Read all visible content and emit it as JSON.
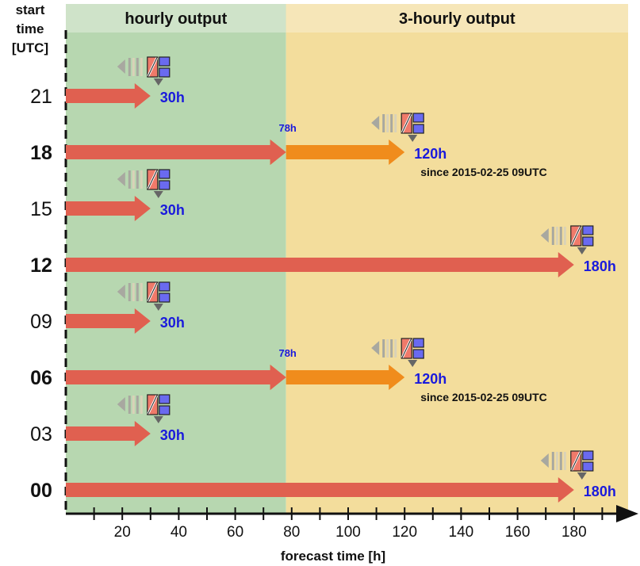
{
  "regions": [
    {
      "label": "hourly output",
      "from": 0,
      "to": 78,
      "color": "#b7d7b0",
      "header_color": "#cfe3c9"
    },
    {
      "label": "3-hourly output",
      "from": 78,
      "to": 200,
      "color": "#f3dd9c",
      "header_color": "#f6e6b8"
    }
  ],
  "y_axis_title": [
    "start",
    "time",
    "[UTC]"
  ],
  "x_axis": {
    "title": "forecast time [h]",
    "min": 0,
    "max": 200,
    "ticks": [
      20,
      40,
      60,
      80,
      100,
      120,
      140,
      160,
      180
    ],
    "minor_step": 10
  },
  "colors": {
    "hourly_arrow": "#e06050",
    "three_hourly_arrow": "#f08c1c",
    "forecast_label": "#1a1adc",
    "icon_red": "#f07a6a",
    "icon_blue": "#6a6af0",
    "icon_gray": "#a8a8a0"
  },
  "runs": [
    {
      "start": "21",
      "bold": false,
      "end": 30,
      "end_label": "30h"
    },
    {
      "start": "18",
      "bold": true,
      "end": 120,
      "end_label": "120h",
      "hourly_until": 78,
      "mid_label": "78h",
      "note": "since 2015-02-25 09UTC"
    },
    {
      "start": "15",
      "bold": false,
      "end": 30,
      "end_label": "30h"
    },
    {
      "start": "12",
      "bold": true,
      "end": 180,
      "end_label": "180h"
    },
    {
      "start": "09",
      "bold": false,
      "end": 30,
      "end_label": "30h"
    },
    {
      "start": "06",
      "bold": true,
      "end": 120,
      "end_label": "120h",
      "hourly_until": 78,
      "mid_label": "78h",
      "note": "since 2015-02-25 09UTC"
    },
    {
      "start": "03",
      "bold": false,
      "end": 30,
      "end_label": "30h"
    },
    {
      "start": "00",
      "bold": true,
      "end": 180,
      "end_label": "180h"
    }
  ]
}
